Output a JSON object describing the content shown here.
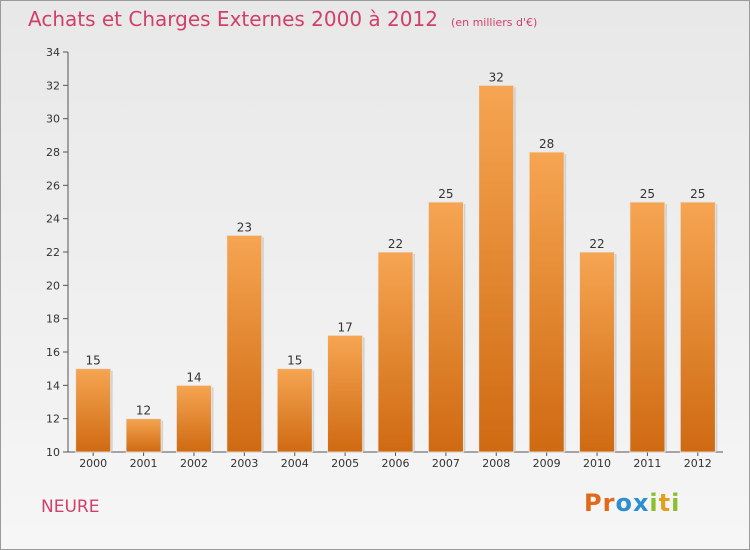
{
  "header": {
    "title": "Achats et Charges Externes 2000 à 2012",
    "subtitle": "(en milliers d'€)"
  },
  "footer": {
    "commune": "NEURE",
    "logo_text": "Proxiti"
  },
  "colors": {
    "title": "#d0406a",
    "bar_top": "#f6a552",
    "bar_bottom": "#cf6a12",
    "logo": [
      "#e06a1a",
      "#e06a1a",
      "#2e8fd0",
      "#2e8fd0",
      "#8bbf2e",
      "#e0a020",
      "#8bbf2e"
    ]
  },
  "chart_data": {
    "type": "bar",
    "categories": [
      "2000",
      "2001",
      "2002",
      "2003",
      "2004",
      "2005",
      "2006",
      "2007",
      "2008",
      "2009",
      "2010",
      "2011",
      "2012"
    ],
    "values": [
      15,
      12,
      14,
      23,
      15,
      17,
      22,
      25,
      32,
      28,
      22,
      25,
      25
    ],
    "ylim": [
      10,
      34
    ],
    "yticks": [
      10,
      12,
      14,
      16,
      18,
      20,
      22,
      24,
      26,
      28,
      30,
      32,
      34
    ],
    "grid": false,
    "legend": "none"
  }
}
